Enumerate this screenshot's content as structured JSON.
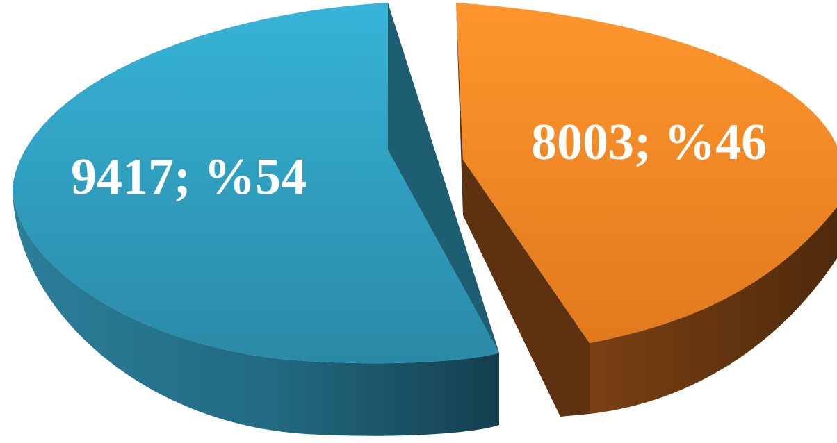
{
  "chart_data": {
    "type": "pie",
    "style": "3d-exploded",
    "categories": [
      "",
      ""
    ],
    "values": [
      9417,
      8003
    ],
    "percentages": [
      54,
      46
    ],
    "labels": [
      "9417; %54",
      "8003; %46"
    ],
    "colors": {
      "slice_1_top": "#2f9fc4",
      "slice_1_side": "#1d5f72",
      "slice_2_top": "#f08a28",
      "slice_2_side": "#6b3810"
    },
    "legend": "none",
    "title": ""
  }
}
